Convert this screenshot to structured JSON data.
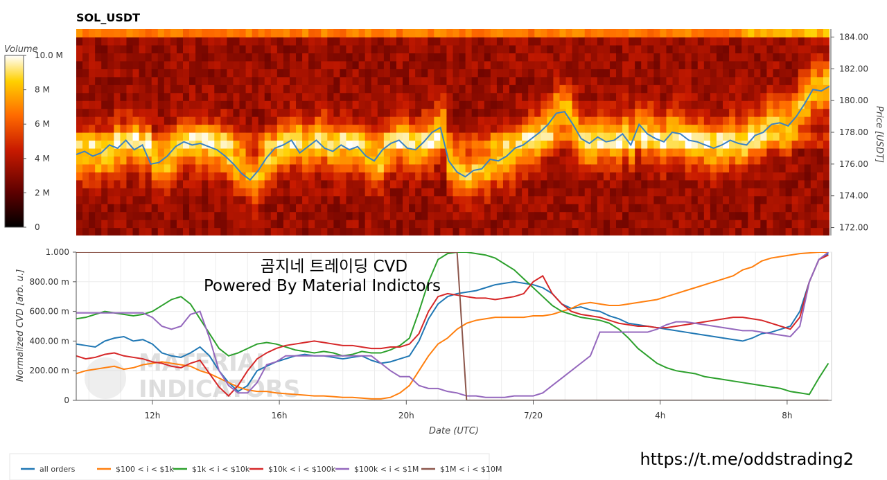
{
  "chart_data": [
    {
      "type": "heatmap",
      "title": "SOL_USDT",
      "ylabel": "Price [USDT]",
      "ylim": [
        171.5,
        184.5
      ],
      "price_ticks": [
        "184.00",
        "182.00",
        "180.00",
        "178.00",
        "176.00",
        "174.00",
        "172.00"
      ],
      "colorbar": {
        "label": "Volume",
        "ticks": [
          "10.0 M",
          "8 M",
          "6 M",
          "4 M",
          "2 M",
          "0"
        ],
        "range": [
          0,
          10000000
        ]
      },
      "price_line_color": "#3b82c4",
      "price_line": [
        176.6,
        176.8,
        176.5,
        176.7,
        177.2,
        177.0,
        177.5,
        176.9,
        177.2,
        176.0,
        176.1,
        176.5,
        177.1,
        177.4,
        177.2,
        177.3,
        177.1,
        176.9,
        176.5,
        176.0,
        175.4,
        175.0,
        175.6,
        176.4,
        177.0,
        177.2,
        177.5,
        176.7,
        177.1,
        177.5,
        177.0,
        176.8,
        177.2,
        176.9,
        177.1,
        176.5,
        176.2,
        176.9,
        177.3,
        177.5,
        177.0,
        176.9,
        177.4,
        178.0,
        178.3,
        176.2,
        175.5,
        175.2,
        175.6,
        175.7,
        176.3,
        176.2,
        176.5,
        177.0,
        177.2,
        177.6,
        178.0,
        178.5,
        179.2,
        179.3,
        178.5,
        177.6,
        177.3,
        177.7,
        177.4,
        177.5,
        177.9,
        177.2,
        178.5,
        177.9,
        177.6,
        177.4,
        178.0,
        177.9,
        177.5,
        177.4,
        177.2,
        177.0,
        177.2,
        177.5,
        177.3,
        177.2,
        177.8,
        178.0,
        178.5,
        178.6,
        178.4,
        179.0,
        179.8,
        180.7,
        180.6,
        180.9
      ]
    },
    {
      "type": "line",
      "title": "",
      "xlabel": "Date (UTC)",
      "ylabel": "Normalized CVD [arb. u.]",
      "ylim": [
        0,
        1000
      ],
      "y_ticks": [
        "1.000",
        "800.00 m",
        "600.00 m",
        "400.00 m",
        "200.00 m",
        "0"
      ],
      "x_ticks": [
        "12h",
        "16h",
        "20h",
        "7/20",
        "4h",
        "8h"
      ],
      "x_tick_hours": [
        12,
        16,
        20,
        24,
        28,
        32
      ],
      "x_range_hours": [
        9.6,
        33.4
      ],
      "legend_position": "bottom-left",
      "x_hours": [
        9.6,
        9.9,
        10.2,
        10.5,
        10.8,
        11.1,
        11.4,
        11.7,
        12.0,
        12.3,
        12.6,
        12.9,
        13.2,
        13.5,
        13.8,
        14.1,
        14.4,
        14.7,
        15.0,
        15.3,
        15.6,
        15.9,
        16.2,
        16.5,
        16.8,
        17.1,
        17.4,
        17.7,
        18.0,
        18.3,
        18.6,
        18.9,
        19.2,
        19.5,
        19.8,
        20.1,
        20.4,
        20.7,
        21.0,
        21.3,
        21.6,
        21.9,
        22.2,
        22.5,
        22.8,
        23.1,
        23.4,
        23.7,
        24.0,
        24.3,
        24.6,
        24.9,
        25.2,
        25.5,
        25.8,
        26.1,
        26.4,
        26.7,
        27.0,
        27.3,
        27.6,
        27.9,
        28.2,
        28.5,
        28.8,
        29.1,
        29.4,
        29.7,
        30.0,
        30.3,
        30.6,
        30.9,
        31.2,
        31.5,
        31.8,
        32.1,
        32.4,
        32.7,
        33.0,
        33.3
      ],
      "series": [
        {
          "name": "all orders",
          "color": "#1f77b4",
          "values": [
            380,
            370,
            360,
            400,
            420,
            430,
            400,
            410,
            380,
            320,
            300,
            290,
            320,
            360,
            300,
            200,
            120,
            60,
            100,
            200,
            230,
            260,
            280,
            300,
            310,
            300,
            300,
            290,
            280,
            290,
            300,
            270,
            250,
            260,
            280,
            300,
            400,
            550,
            650,
            700,
            720,
            730,
            740,
            760,
            780,
            790,
            800,
            790,
            780,
            760,
            720,
            650,
            620,
            630,
            610,
            600,
            570,
            550,
            520,
            510,
            500,
            490,
            480,
            470,
            460,
            450,
            440,
            430,
            420,
            410,
            400,
            420,
            450,
            460,
            480,
            500,
            600,
            800,
            950,
            990
          ]
        },
        {
          "name": "$100 < i < $1k",
          "color": "#ff7f0e",
          "values": [
            180,
            200,
            210,
            220,
            230,
            210,
            220,
            240,
            250,
            260,
            250,
            240,
            230,
            200,
            180,
            150,
            120,
            90,
            70,
            60,
            60,
            50,
            45,
            40,
            35,
            30,
            30,
            25,
            20,
            20,
            15,
            10,
            10,
            20,
            50,
            100,
            200,
            300,
            380,
            420,
            480,
            520,
            540,
            550,
            560,
            560,
            560,
            560,
            570,
            570,
            580,
            600,
            620,
            650,
            660,
            650,
            640,
            640,
            650,
            660,
            670,
            680,
            700,
            720,
            740,
            760,
            780,
            800,
            820,
            840,
            880,
            900,
            940,
            960,
            970,
            980,
            990,
            995,
            1000,
            1000
          ]
        },
        {
          "name": "$1k < i < $10k",
          "color": "#2ca02c",
          "values": [
            550,
            560,
            580,
            600,
            590,
            580,
            570,
            580,
            600,
            640,
            680,
            700,
            650,
            550,
            450,
            350,
            300,
            320,
            350,
            380,
            390,
            380,
            360,
            340,
            330,
            320,
            330,
            320,
            300,
            310,
            330,
            320,
            320,
            340,
            370,
            420,
            600,
            800,
            950,
            990,
            1000,
            1000,
            990,
            980,
            960,
            920,
            880,
            820,
            760,
            700,
            640,
            600,
            580,
            560,
            550,
            540,
            520,
            480,
            420,
            350,
            300,
            250,
            220,
            200,
            190,
            180,
            160,
            150,
            140,
            130,
            120,
            110,
            100,
            90,
            80,
            60,
            50,
            40,
            150,
            250
          ]
        },
        {
          "name": "$10k < i < $100k",
          "color": "#d62728",
          "values": [
            300,
            280,
            290,
            310,
            320,
            300,
            290,
            280,
            260,
            250,
            230,
            220,
            250,
            270,
            180,
            90,
            30,
            100,
            200,
            280,
            320,
            350,
            370,
            380,
            390,
            400,
            390,
            380,
            370,
            370,
            360,
            350,
            350,
            360,
            360,
            380,
            450,
            600,
            700,
            720,
            710,
            700,
            690,
            690,
            680,
            690,
            700,
            720,
            800,
            840,
            720,
            650,
            600,
            580,
            570,
            560,
            540,
            520,
            510,
            500,
            500,
            490,
            490,
            500,
            510,
            520,
            530,
            540,
            550,
            560,
            560,
            550,
            540,
            520,
            500,
            480,
            560,
            800,
            950,
            980
          ]
        },
        {
          "name": "$100k < i < $1M",
          "color": "#9467bd",
          "values": [
            590,
            590,
            590,
            590,
            590,
            590,
            590,
            590,
            560,
            500,
            480,
            500,
            580,
            600,
            420,
            200,
            100,
            50,
            50,
            120,
            240,
            260,
            300,
            300,
            300,
            300,
            300,
            300,
            300,
            300,
            300,
            300,
            250,
            200,
            160,
            160,
            100,
            80,
            80,
            60,
            50,
            30,
            30,
            20,
            20,
            20,
            30,
            30,
            30,
            50,
            100,
            150,
            200,
            250,
            300,
            460,
            460,
            460,
            460,
            460,
            460,
            480,
            510,
            530,
            530,
            520,
            510,
            500,
            490,
            480,
            470,
            470,
            460,
            450,
            440,
            430,
            500,
            800,
            950,
            1000
          ]
        },
        {
          "name": "$1M < i < $10M",
          "color": "#8c564b",
          "values": [
            1000,
            1000,
            1000,
            1000,
            1000,
            1000,
            1000,
            1000,
            1000,
            1000,
            1000,
            1000,
            1000,
            1000,
            1000,
            1000,
            1000,
            1000,
            1000,
            1000,
            1000,
            1000,
            1000,
            1000,
            1000,
            1000,
            1000,
            1000,
            1000,
            1000,
            1000,
            1000,
            1000,
            1000,
            1000,
            1000,
            1000,
            1000,
            1000,
            1000,
            1000,
            0,
            0,
            0,
            0,
            0,
            0,
            0,
            0,
            0,
            0,
            0,
            0,
            0,
            0,
            0,
            0,
            0,
            0,
            0,
            0,
            0,
            0,
            0,
            0,
            0,
            0,
            0,
            0,
            0,
            0,
            0,
            0,
            0,
            0,
            0,
            0,
            0,
            0,
            0
          ]
        }
      ]
    }
  ],
  "overlay": {
    "line1": "곰지네 트레이딩 CVD",
    "line2": "Powered By Material Indictors",
    "watermark_line1": "MATERIAL",
    "watermark_line2": "INDICATORS",
    "link": "https://t.me/oddstrading2"
  }
}
